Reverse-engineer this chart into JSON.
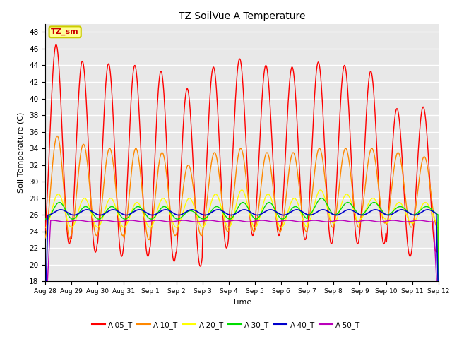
{
  "title": "TZ SoilVue A Temperature",
  "xlabel": "Time",
  "ylabel": "Soil Temperature (C)",
  "ylim": [
    18,
    49
  ],
  "yticks": [
    18,
    20,
    22,
    24,
    26,
    28,
    30,
    32,
    34,
    36,
    38,
    40,
    42,
    44,
    46,
    48
  ],
  "xtick_labels": [
    "Aug 28",
    "Aug 29",
    "Aug 30",
    "Aug 31",
    "Sep 1",
    "Sep 2",
    "Sep 3",
    "Sep 4",
    "Sep 5",
    "Sep 6",
    "Sep 7",
    "Sep 8",
    "Sep 9",
    "Sep 10",
    "Sep 11",
    "Sep 12"
  ],
  "legend_label": "TZ_sm",
  "series_labels": [
    "A-05_T",
    "A-10_T",
    "A-20_T",
    "A-30_T",
    "A-40_T",
    "A-50_T"
  ],
  "series_colors": [
    "#ff0000",
    "#ff8800",
    "#ffff00",
    "#00dd00",
    "#0000cc",
    "#bb00bb"
  ],
  "series_linewidths": [
    1.0,
    1.0,
    1.0,
    1.0,
    1.2,
    1.0
  ],
  "figure_bg_color": "#ffffff",
  "plot_bg_color": "#e8e8e8",
  "grid_color": "#ffffff",
  "annotation_box_color": "#ffff99",
  "annotation_text_color": "#cc0000",
  "annotation_border_color": "#cccc00",
  "n_days": 15,
  "amp_05": [
    46.5,
    44.5,
    44.2,
    44.0,
    43.3,
    41.2,
    43.8,
    44.8,
    44.0,
    43.8,
    44.4,
    44.0,
    43.3,
    38.8,
    39.0
  ],
  "min_05": [
    22.5,
    21.5,
    21.0,
    21.0,
    20.4,
    19.8,
    22.0,
    23.5,
    23.5,
    23.0,
    22.5,
    22.5,
    22.5,
    21.0,
    21.5
  ],
  "amp_10": [
    35.5,
    34.5,
    34.0,
    34.0,
    33.5,
    32.0,
    33.5,
    34.0,
    33.5,
    33.5,
    34.0,
    34.0,
    34.0,
    33.5,
    33.0
  ],
  "min_10": [
    23.0,
    23.5,
    23.5,
    23.0,
    23.5,
    23.5,
    24.0,
    24.0,
    24.0,
    24.0,
    24.5,
    24.5,
    25.0,
    24.5,
    24.5
  ],
  "amp_20": [
    28.5,
    28.0,
    28.0,
    27.5,
    28.0,
    28.0,
    28.5,
    29.0,
    28.5,
    28.0,
    29.0,
    28.5,
    28.0,
    27.5,
    27.5
  ],
  "min_20": [
    24.5,
    24.5,
    24.5,
    24.5,
    24.5,
    24.5,
    24.5,
    24.5,
    24.5,
    24.5,
    25.0,
    25.0,
    25.5,
    25.0,
    25.0
  ],
  "amp_30": [
    27.5,
    27.0,
    27.0,
    27.0,
    27.0,
    26.5,
    27.0,
    27.5,
    27.5,
    27.0,
    28.0,
    27.5,
    27.5,
    27.0,
    27.0
  ],
  "min_30": [
    25.5,
    25.5,
    25.5,
    25.5,
    25.5,
    25.5,
    25.5,
    25.5,
    25.5,
    25.5,
    26.0,
    26.0,
    26.0,
    26.0,
    26.0
  ],
  "phase_05": 4,
  "phase_10": 5,
  "phase_20": 6,
  "phase_30": 7
}
